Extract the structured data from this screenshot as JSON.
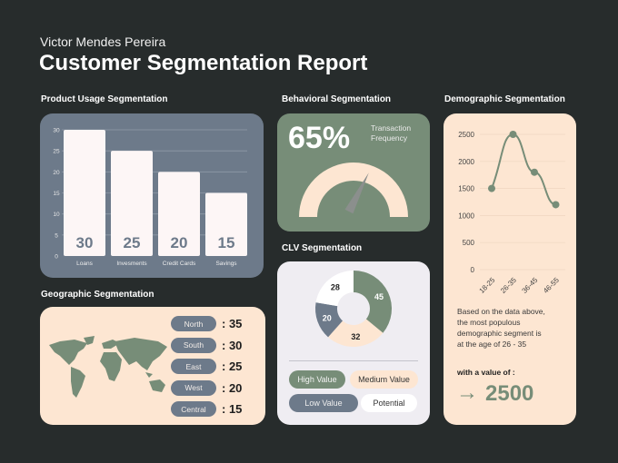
{
  "header": {
    "author": "Victor Mendes Pereira",
    "title": "Customer Segmentation Report"
  },
  "colors": {
    "background": "#272c2c",
    "slate": "#6d7a8a",
    "green": "#778d78",
    "peach": "#fde6d2",
    "white": "#fdf6f6",
    "lavender": "#efedf2"
  },
  "product": {
    "heading": "Product Usage Segmentation"
  },
  "behavioral": {
    "heading": "Behavioral Segmentation",
    "percent_label": "65%",
    "percent": 65,
    "caption_line1": "Transaction",
    "caption_line2": "Frequency"
  },
  "clv": {
    "heading": "CLV Segmentation",
    "legend": [
      "High Value",
      "Medium Value",
      "Low Value",
      "Potential"
    ]
  },
  "geographic": {
    "heading": "Geographic Segmentation",
    "regions": [
      {
        "name": "North",
        "value": ": 35"
      },
      {
        "name": "South",
        "value": ": 30"
      },
      {
        "name": "East",
        "value": ": 25"
      },
      {
        "name": "West",
        "value": ": 20"
      },
      {
        "name": "Central",
        "value": ": 15"
      }
    ]
  },
  "demographic": {
    "heading": "Demographic Segmentation",
    "note_line1": "Based on the data above,",
    "note_line2": "the most populous",
    "note_line3": "demographic segment is",
    "note_line4": "at the age of 26 - 35",
    "value_label": "with a value of :",
    "arrow": "→",
    "value": "2500"
  },
  "chart_data": [
    {
      "type": "bar",
      "categories": [
        "Loans",
        "Invesments",
        "Credit Cards",
        "Savings"
      ],
      "values": [
        30,
        25,
        20,
        15
      ],
      "ylim": [
        0,
        30
      ],
      "yticks": [
        "0",
        "5",
        "10",
        "15",
        "20",
        "25",
        "30"
      ],
      "grid": true
    },
    {
      "type": "pie",
      "donut": true,
      "categories": [
        "High Value",
        "Medium Value",
        "Low Value",
        "Potential"
      ],
      "values": [
        45,
        32,
        20,
        28
      ],
      "colors": [
        "#778d78",
        "#fde6d2",
        "#6d7a8a",
        "#ffffff"
      ]
    },
    {
      "type": "line",
      "categories": [
        "18-25",
        "26-35",
        "36-45",
        "46-55"
      ],
      "values": [
        1500,
        2500,
        1800,
        1200
      ],
      "ylim": [
        0,
        2500
      ],
      "yticks": [
        "0",
        "500",
        "1000",
        "1500",
        "2000",
        "2500"
      ],
      "grid": true
    }
  ]
}
